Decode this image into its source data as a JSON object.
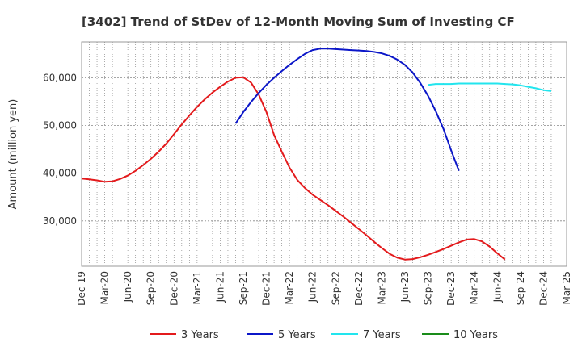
{
  "chart_data": {
    "type": "line",
    "title": "[3402]  Trend of StDev of 12-Month Moving Sum of Investing CF",
    "ylabel": "Amount (million yen)",
    "xlabel": "",
    "ylim": [
      20500,
      67500
    ],
    "y_ticks": [
      30000,
      40000,
      50000,
      60000
    ],
    "y_tick_labels": [
      "30,000",
      "40,000",
      "50,000",
      "60,000"
    ],
    "x_start": "2019-12",
    "x_end": "2025-03",
    "x_tick_labels": [
      "Dec-19",
      "Mar-20",
      "Jun-20",
      "Sep-20",
      "Dec-20",
      "Mar-21",
      "Jun-21",
      "Sep-21",
      "Dec-21",
      "Mar-22",
      "Jun-22",
      "Sep-22",
      "Dec-22",
      "Mar-23",
      "Jun-23",
      "Sep-23",
      "Dec-23",
      "Mar-24",
      "Jun-24",
      "Sep-24",
      "Dec-24",
      "Mar-25"
    ],
    "grid": true,
    "legend_position": "bottom",
    "series": [
      {
        "name": "3 Years",
        "color": "#e31a1c",
        "points": [
          [
            "2019-12",
            38900
          ],
          [
            "2020-01",
            38700
          ],
          [
            "2020-02",
            38500
          ],
          [
            "2020-03",
            38200
          ],
          [
            "2020-04",
            38300
          ],
          [
            "2020-05",
            38800
          ],
          [
            "2020-06",
            39500
          ],
          [
            "2020-07",
            40500
          ],
          [
            "2020-08",
            41700
          ],
          [
            "2020-09",
            43000
          ],
          [
            "2020-10",
            44500
          ],
          [
            "2020-11",
            46200
          ],
          [
            "2020-12",
            48200
          ],
          [
            "2021-01",
            50200
          ],
          [
            "2021-02",
            52100
          ],
          [
            "2021-03",
            53900
          ],
          [
            "2021-04",
            55500
          ],
          [
            "2021-05",
            56900
          ],
          [
            "2021-06",
            58100
          ],
          [
            "2021-07",
            59200
          ],
          [
            "2021-08",
            60000
          ],
          [
            "2021-09",
            60100
          ],
          [
            "2021-10",
            59000
          ],
          [
            "2021-11",
            56500
          ],
          [
            "2021-12",
            52800
          ],
          [
            "2022-01",
            48000
          ],
          [
            "2022-02",
            44500
          ],
          [
            "2022-03",
            41200
          ],
          [
            "2022-04",
            38600
          ],
          [
            "2022-05",
            36900
          ],
          [
            "2022-06",
            35500
          ],
          [
            "2022-07",
            34400
          ],
          [
            "2022-08",
            33300
          ],
          [
            "2022-09",
            32100
          ],
          [
            "2022-10",
            30900
          ],
          [
            "2022-11",
            29600
          ],
          [
            "2022-12",
            28300
          ],
          [
            "2023-01",
            27000
          ],
          [
            "2023-02",
            25600
          ],
          [
            "2023-03",
            24300
          ],
          [
            "2023-04",
            23100
          ],
          [
            "2023-05",
            22300
          ],
          [
            "2023-06",
            21900
          ],
          [
            "2023-07",
            22000
          ],
          [
            "2023-08",
            22400
          ],
          [
            "2023-09",
            22900
          ],
          [
            "2023-10",
            23500
          ],
          [
            "2023-11",
            24100
          ],
          [
            "2023-12",
            24800
          ],
          [
            "2024-01",
            25500
          ],
          [
            "2024-02",
            26100
          ],
          [
            "2024-03",
            26200
          ],
          [
            "2024-04",
            25700
          ],
          [
            "2024-05",
            24600
          ],
          [
            "2024-06",
            23200
          ],
          [
            "2024-07",
            21900
          ]
        ]
      },
      {
        "name": "5 Years",
        "color": "#0b16c8",
        "points": [
          [
            "2021-08",
            50400
          ],
          [
            "2021-09",
            52800
          ],
          [
            "2021-10",
            54900
          ],
          [
            "2021-11",
            56800
          ],
          [
            "2021-12",
            58500
          ],
          [
            "2022-01",
            60000
          ],
          [
            "2022-02",
            61400
          ],
          [
            "2022-03",
            62700
          ],
          [
            "2022-04",
            63900
          ],
          [
            "2022-05",
            65000
          ],
          [
            "2022-06",
            65800
          ],
          [
            "2022-07",
            66100
          ],
          [
            "2022-08",
            66100
          ],
          [
            "2022-09",
            66000
          ],
          [
            "2022-10",
            65900
          ],
          [
            "2022-11",
            65800
          ],
          [
            "2022-12",
            65700
          ],
          [
            "2023-01",
            65600
          ],
          [
            "2023-02",
            65400
          ],
          [
            "2023-03",
            65100
          ],
          [
            "2023-04",
            64600
          ],
          [
            "2023-05",
            63800
          ],
          [
            "2023-06",
            62700
          ],
          [
            "2023-07",
            61100
          ],
          [
            "2023-08",
            58900
          ],
          [
            "2023-09",
            56200
          ],
          [
            "2023-10",
            53000
          ],
          [
            "2023-11",
            49300
          ],
          [
            "2023-12",
            44800
          ],
          [
            "2023-13",
            40500
          ]
        ]
      },
      {
        "name": "7 Years",
        "color": "#22e5ee",
        "points": [
          [
            "2023-09",
            58500
          ],
          [
            "2023-10",
            58700
          ],
          [
            "2023-11",
            58700
          ],
          [
            "2023-12",
            58700
          ],
          [
            "2024-01",
            58800
          ],
          [
            "2024-02",
            58800
          ],
          [
            "2024-03",
            58800
          ],
          [
            "2024-04",
            58800
          ],
          [
            "2024-05",
            58800
          ],
          [
            "2024-06",
            58800
          ],
          [
            "2024-07",
            58700
          ],
          [
            "2024-08",
            58600
          ],
          [
            "2024-09",
            58400
          ],
          [
            "2024-10",
            58100
          ],
          [
            "2024-11",
            57800
          ],
          [
            "2024-12",
            57400
          ],
          [
            "2025-01",
            57200
          ]
        ]
      },
      {
        "name": "10 Years",
        "color": "#1a8c1a",
        "points": []
      }
    ]
  }
}
